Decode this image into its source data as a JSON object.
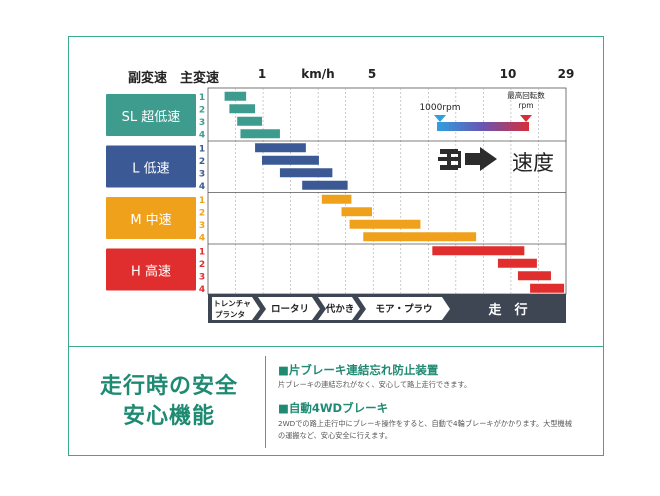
{
  "header": {
    "sub_transmission": "副変速",
    "main_transmission": "主変速"
  },
  "chart_data": {
    "type": "bar",
    "orientation": "horizontal-range",
    "xaxis": {
      "unit": "km/h",
      "ticks": [
        1,
        5,
        10,
        29
      ]
    },
    "groups": [
      {
        "label": "SL 超低速",
        "color": "#3e9c8e",
        "gear_color": "#3e9c8e",
        "bar_color": "#3e9c8e",
        "gears": [
          {
            "gear": "1",
            "range": [
              0.3,
              0.6
            ]
          },
          {
            "gear": "2",
            "range": [
              0.35,
              0.8
            ]
          },
          {
            "gear": "3",
            "range": [
              0.45,
              1.0
            ]
          },
          {
            "gear": "4",
            "range": [
              0.5,
              1.3
            ]
          }
        ]
      },
      {
        "label": "L 低速",
        "color": "#3b5a95",
        "gear_color": "#3b5a95",
        "bar_color": "#3b5a95",
        "gears": [
          {
            "gear": "1",
            "range": [
              0.8,
              1.9
            ]
          },
          {
            "gear": "2",
            "range": [
              1.0,
              2.3
            ]
          },
          {
            "gear": "3",
            "range": [
              1.3,
              2.8
            ]
          },
          {
            "gear": "4",
            "range": [
              1.8,
              3.5
            ]
          }
        ]
      },
      {
        "label": "M 中速",
        "color": "#f0a11c",
        "gear_color": "#f0a11c",
        "bar_color": "#f0a11c",
        "gears": [
          {
            "gear": "1",
            "range": [
              2.4,
              3.7
            ]
          },
          {
            "gear": "2",
            "range": [
              3.2,
              5.0
            ]
          },
          {
            "gear": "3",
            "range": [
              3.6,
              6.4
            ]
          },
          {
            "gear": "4",
            "range": [
              4.4,
              8.5
            ]
          }
        ]
      },
      {
        "label": "H 高速",
        "color": "#e02e2e",
        "gear_color": "#e02e2e",
        "bar_color": "#e02e2e",
        "gears": [
          {
            "gear": "1",
            "range": [
              6.8,
              13.5
            ]
          },
          {
            "gear": "2",
            "range": [
              9.5,
              17
            ]
          },
          {
            "gear": "3",
            "range": [
              12,
              22
            ]
          },
          {
            "gear": "4",
            "range": [
              15,
              28
            ]
          }
        ]
      }
    ],
    "legend": {
      "low_rpm": "1000rpm",
      "high_rpm_line1": "最高回転数",
      "high_rpm_line2": "rpm",
      "speed_label": "速度"
    },
    "work_labels": [
      "トレンチャ",
      "プランタ",
      "ロータリ",
      "代かき",
      "モア・プラウ",
      "走　行"
    ]
  },
  "features": {
    "title_line1": "走行時の安全",
    "title_line2": "安心機能",
    "item1_heading": "■片ブレーキ連結忘れ防止装置",
    "item1_text": "片ブレーキの連結忘れがなく、安心して路上走行できます。",
    "item2_heading": "■自動4WDブレーキ",
    "item2_text_line1": "2WDでの路上走行中にブレーキ操作をすると、自動で4輪ブレーキがかかります。大型機械",
    "item2_text_line2": "の運搬など、安心安全に行えます。"
  },
  "colors": {
    "accent": "#1f8a72",
    "frame": "#3aa98c",
    "bottom_bar": "#3d4652"
  }
}
